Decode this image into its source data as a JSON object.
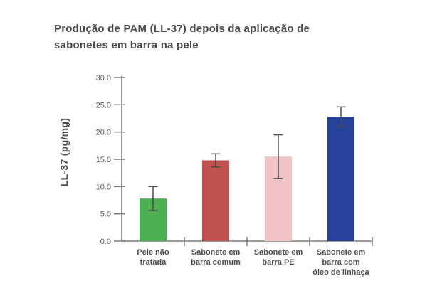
{
  "chart_data": {
    "type": "bar",
    "title": "Produção de PAM (LL-37) depois da aplicação de sabonetes em barra na pele",
    "xlabel": "",
    "ylabel": "LL-37 (pg/mg)",
    "categories": [
      "Pele não\ntratada",
      "Sabonete em\nbarra comum",
      "Sabonete em\nbarra PE",
      "Sabonete em\nbarra com\nóleo de linhaça"
    ],
    "values": [
      7.8,
      14.8,
      15.5,
      22.8
    ],
    "error_bars": [
      2.2,
      1.2,
      4.0,
      1.8
    ],
    "bar_colors": [
      "#4caf50",
      "#c0504d",
      "#f0c4c7",
      "#27429b"
    ],
    "ylim": [
      0,
      30
    ],
    "yticks": [
      0,
      5,
      10,
      15,
      20,
      25,
      30
    ],
    "ytick_labels": [
      "0.0",
      "5.0",
      "10.0",
      "15.0",
      "20.0",
      "25.0",
      "30.0"
    ],
    "grid": false,
    "legend": "none",
    "axis_color": "#7a7a7a",
    "error_bar_color": "#4d4d4d",
    "tick_label_color": "#595959",
    "category_label_color": "#4d4d4d",
    "title_color": "#4a4a4a"
  }
}
